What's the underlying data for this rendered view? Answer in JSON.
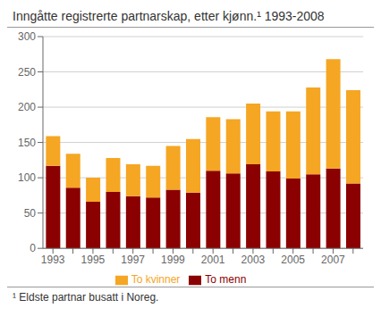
{
  "chart_data": {
    "type": "bar",
    "title": "Inngåtte registrerte partnarskap, etter kjønn.¹  1993-2008",
    "footnote": "¹ Eldste partnar busatt i Noreg.",
    "categories": [
      "1993",
      null,
      "1995",
      null,
      "1997",
      null,
      "1999",
      null,
      "2001",
      null,
      "2003",
      null,
      "2005",
      null,
      "2007",
      null
    ],
    "series": [
      {
        "name": "To menn",
        "color": "#8B0000",
        "values": [
          117,
          86,
          66,
          80,
          74,
          72,
          83,
          79,
          110,
          106,
          119,
          109,
          99,
          105,
          113,
          92
        ]
      },
      {
        "name": "To kvinner",
        "color": "#F5A623",
        "values": [
          42,
          48,
          34,
          48,
          45,
          45,
          62,
          76,
          76,
          77,
          86,
          85,
          95,
          123,
          155,
          132
        ]
      }
    ],
    "stacked": true,
    "ylim": [
      0,
      300
    ],
    "yticks": [
      0,
      50,
      100,
      150,
      200,
      250,
      300
    ],
    "grid": true,
    "legend": "bottom"
  }
}
